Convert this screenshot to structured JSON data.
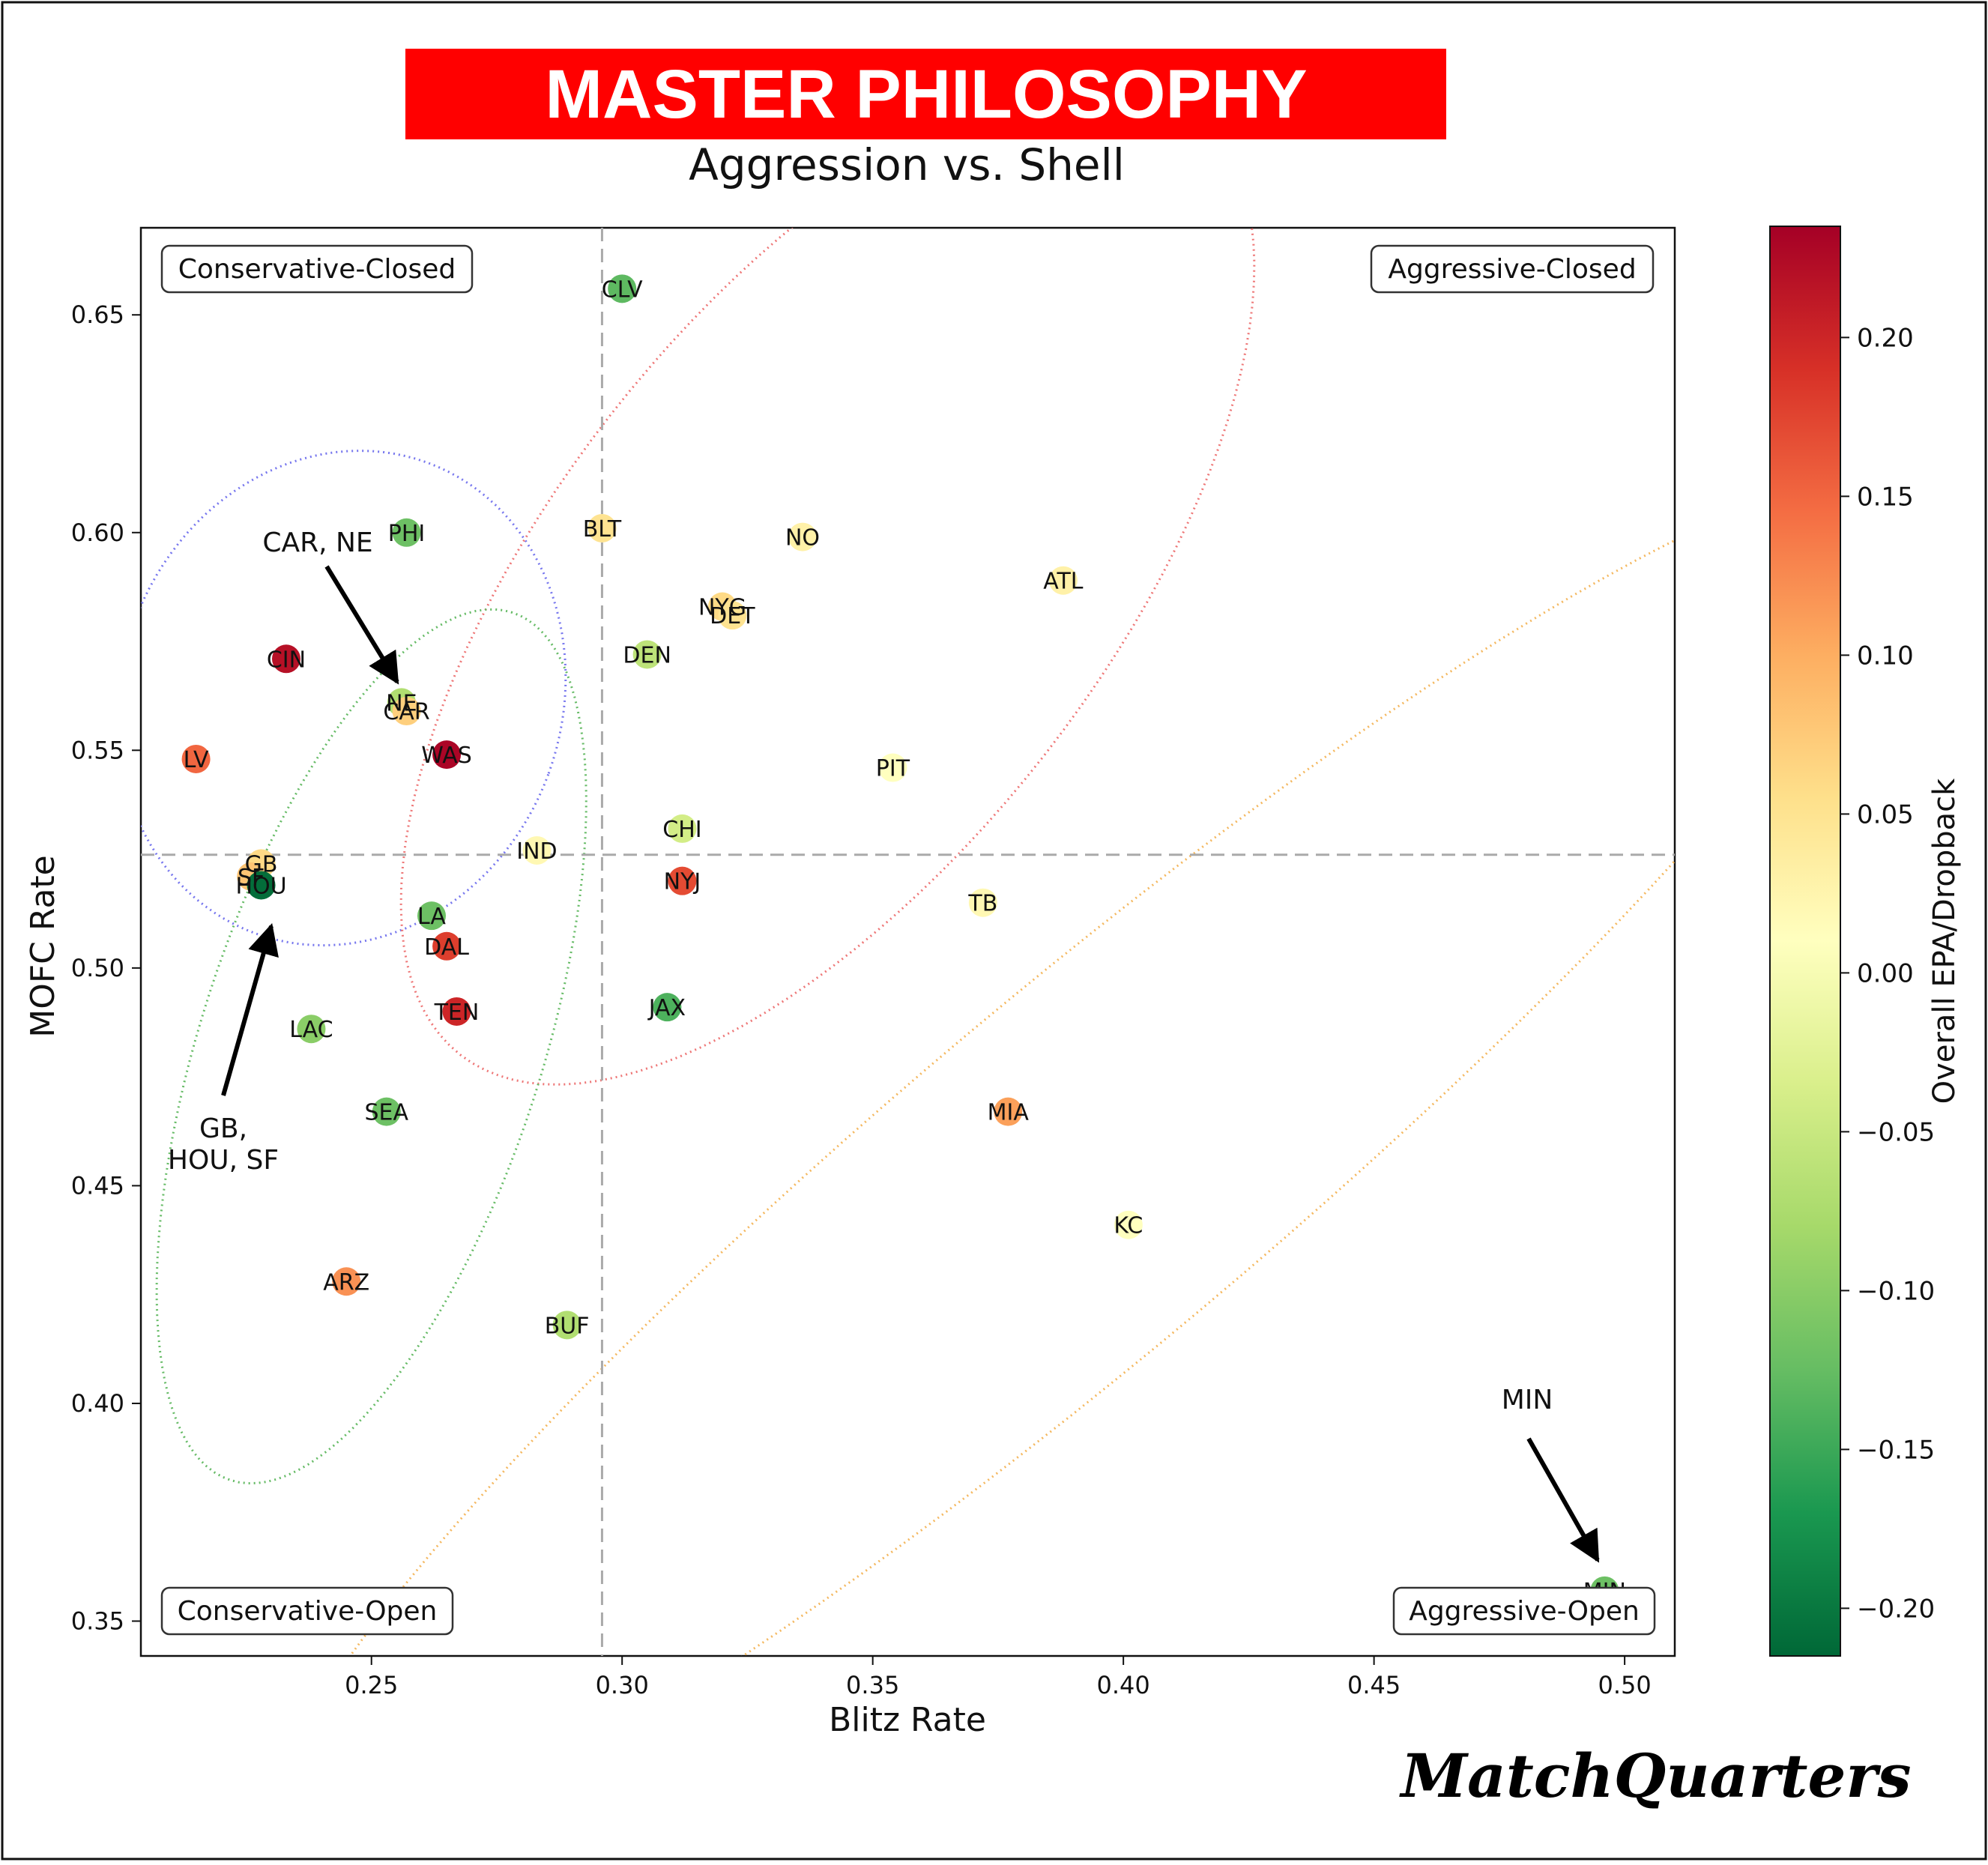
{
  "header": {
    "banner_title": "MASTER PHILOSOPHY",
    "subtitle": "Aggression vs. Shell",
    "banner_color": "#ff0000"
  },
  "brand": "MatchQuarters",
  "colorbar": {
    "label": "Overall EPA/Dropback",
    "ticks": [
      "0.20",
      "0.15",
      "0.10",
      "0.05",
      "0.00",
      "−0.05",
      "−0.10",
      "−0.15",
      "−0.20"
    ],
    "tick_values": [
      0.2,
      0.15,
      0.1,
      0.05,
      0.0,
      -0.05,
      -0.1,
      -0.15,
      -0.2
    ],
    "range": [
      -0.215,
      0.235
    ],
    "colormap": "RdYlGn_r"
  },
  "quadrants": {
    "top_left": "Conservative-Closed",
    "top_right": "Aggressive-Closed",
    "bottom_left": "Conservative-Open",
    "bottom_right": "Aggressive-Open"
  },
  "annotations": [
    {
      "text": "CAR, NE",
      "lines": [
        "CAR, NE"
      ]
    },
    {
      "text": "GB, HOU, SF",
      "lines": [
        "GB,",
        "HOU, SF"
      ]
    },
    {
      "text": "MIN",
      "lines": [
        "MIN"
      ]
    }
  ],
  "chart_data": {
    "type": "scatter",
    "title": "Aggression vs. Shell",
    "xlabel": "Blitz Rate",
    "ylabel": "MOFC Rate",
    "xlim": [
      0.204,
      0.51
    ],
    "ylim": [
      0.342,
      0.67
    ],
    "xticks": [
      "0.25",
      "0.30",
      "0.35",
      "0.40",
      "0.45",
      "0.50"
    ],
    "xtick_values": [
      0.25,
      0.3,
      0.35,
      0.4,
      0.45,
      0.5
    ],
    "yticks": [
      "0.35",
      "0.40",
      "0.45",
      "0.50",
      "0.55",
      "0.60",
      "0.65"
    ],
    "ytick_values": [
      0.35,
      0.4,
      0.45,
      0.5,
      0.55,
      0.6,
      0.65
    ],
    "grid": false,
    "reference_lines": {
      "x_mean": 0.296,
      "y_mean": 0.526
    },
    "color_metric": "Overall EPA/Dropback",
    "points": [
      {
        "team": "CLV",
        "x": 0.3,
        "y": 0.656,
        "epa": -0.13
      },
      {
        "team": "PHI",
        "x": 0.257,
        "y": 0.6,
        "epa": -0.12
      },
      {
        "team": "BLT",
        "x": 0.296,
        "y": 0.601,
        "epa": 0.05
      },
      {
        "team": "NO",
        "x": 0.336,
        "y": 0.599,
        "epa": 0.03
      },
      {
        "team": "ATL",
        "x": 0.388,
        "y": 0.589,
        "epa": 0.03
      },
      {
        "team": "NYG",
        "x": 0.32,
        "y": 0.583,
        "epa": 0.06
      },
      {
        "team": "DET",
        "x": 0.322,
        "y": 0.581,
        "epa": 0.05
      },
      {
        "team": "DEN",
        "x": 0.305,
        "y": 0.572,
        "epa": -0.06
      },
      {
        "team": "CIN",
        "x": 0.233,
        "y": 0.571,
        "epa": 0.22
      },
      {
        "team": "NE",
        "x": 0.256,
        "y": 0.561,
        "epa": -0.07
      },
      {
        "team": "CAR",
        "x": 0.257,
        "y": 0.559,
        "epa": 0.07
      },
      {
        "team": "LV",
        "x": 0.215,
        "y": 0.548,
        "epa": 0.15
      },
      {
        "team": "WAS",
        "x": 0.265,
        "y": 0.549,
        "epa": 0.23
      },
      {
        "team": "PIT",
        "x": 0.354,
        "y": 0.546,
        "epa": 0.01
      },
      {
        "team": "CHI",
        "x": 0.312,
        "y": 0.532,
        "epa": -0.04
      },
      {
        "team": "IND",
        "x": 0.283,
        "y": 0.527,
        "epa": 0.02
      },
      {
        "team": "GB",
        "x": 0.228,
        "y": 0.524,
        "epa": 0.06
      },
      {
        "team": "SF",
        "x": 0.226,
        "y": 0.521,
        "epa": 0.08
      },
      {
        "team": "HOU",
        "x": 0.228,
        "y": 0.519,
        "epa": -0.21
      },
      {
        "team": "NYJ",
        "x": 0.312,
        "y": 0.52,
        "epa": 0.17
      },
      {
        "team": "TB",
        "x": 0.372,
        "y": 0.515,
        "epa": 0.02
      },
      {
        "team": "LA",
        "x": 0.262,
        "y": 0.512,
        "epa": -0.12
      },
      {
        "team": "DAL",
        "x": 0.265,
        "y": 0.505,
        "epa": 0.18
      },
      {
        "team": "JAX",
        "x": 0.309,
        "y": 0.491,
        "epa": -0.14
      },
      {
        "team": "TEN",
        "x": 0.267,
        "y": 0.49,
        "epa": 0.2
      },
      {
        "team": "LAC",
        "x": 0.238,
        "y": 0.486,
        "epa": -0.1
      },
      {
        "team": "SEA",
        "x": 0.253,
        "y": 0.467,
        "epa": -0.12
      },
      {
        "team": "MIA",
        "x": 0.377,
        "y": 0.467,
        "epa": 0.11
      },
      {
        "team": "KC",
        "x": 0.401,
        "y": 0.441,
        "epa": 0.01
      },
      {
        "team": "ARZ",
        "x": 0.245,
        "y": 0.428,
        "epa": 0.12
      },
      {
        "team": "BUF",
        "x": 0.289,
        "y": 0.418,
        "epa": -0.07
      },
      {
        "team": "MIN",
        "x": 0.496,
        "y": 0.357,
        "epa": -0.12
      }
    ],
    "clusters": [
      {
        "color": "#7777ee",
        "cx": 0.244,
        "cy": 0.562,
        "rx": 0.044,
        "ry": 0.05,
        "angle": -20
      },
      {
        "color": "#ee7777",
        "cx": 0.341,
        "cy": 0.588,
        "rx": 0.119,
        "ry": 0.055,
        "angle": 52
      },
      {
        "color": "#f4b860",
        "cx": 0.392,
        "cy": 0.453,
        "rx": 0.21,
        "ry": 0.036,
        "angle": 40
      },
      {
        "color": "#66bb66",
        "cx": 0.25,
        "cy": 0.482,
        "rx": 0.091,
        "ry": 0.034,
        "angle": 72
      }
    ]
  }
}
